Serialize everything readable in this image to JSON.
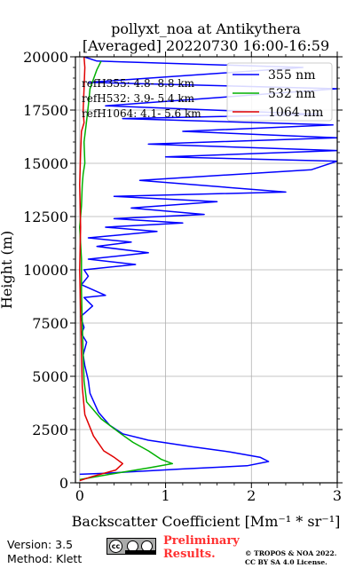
{
  "chart_data": {
    "type": "line",
    "title": "pollyxt_noa at Antikythera",
    "subtitle": "[Averaged] 20220730 16:00-16:59",
    "xlabel": "Backscatter Coefficient [Mm⁻¹ * sr⁻¹]",
    "ylabel": "Height (m)",
    "xlim": [
      -0.05,
      3
    ],
    "ylim": [
      0,
      20000
    ],
    "xticks": [
      "0",
      "1",
      "2",
      "3"
    ],
    "yticks": [
      "0",
      "2500",
      "5000",
      "7500",
      "10000",
      "12500",
      "15000",
      "17500",
      "20000"
    ],
    "grid": true,
    "legend_position": "top-right",
    "annotations": [
      "refH355:  4.8- 8.8 km",
      "refH532:  3.9- 5.4 km",
      "refH1064:  4.1- 5.6 km"
    ],
    "series": [
      {
        "name": "355 nm",
        "color": "#0000ff",
        "x": [
          0,
          0.3,
          1.2,
          1.95,
          2.2,
          2.1,
          1.75,
          1.3,
          0.8,
          0.5,
          0.35,
          0.22,
          0.12,
          0.1,
          0.06,
          0.04,
          0.08,
          0.02,
          0.05,
          0.01,
          0.15,
          0.05,
          0.3,
          0.02,
          0.1,
          0.05,
          0.65,
          0.1,
          0.8,
          0.2,
          0.6,
          0.1,
          0.9,
          0.3,
          1.2,
          0.4,
          1.45,
          0.6,
          1.6,
          0.4,
          2.4,
          0.7,
          2.7,
          3.0,
          1.0,
          3.0,
          0.8,
          3.0,
          1.2,
          2.95,
          0.5,
          2.8,
          0.3,
          3.0,
          0.1,
          2.6,
          0.2,
          0.05
        ],
        "y": [
          400,
          450,
          650,
          800,
          1000,
          1200,
          1450,
          1700,
          2000,
          2300,
          2700,
          3300,
          4200,
          4800,
          5500,
          6000,
          6600,
          7000,
          7300,
          7800,
          8300,
          8700,
          8800,
          9300,
          9700,
          10000,
          10250,
          10500,
          10800,
          11100,
          11300,
          11500,
          11800,
          12000,
          12200,
          12400,
          12600,
          12900,
          13200,
          13450,
          13650,
          14200,
          14700,
          15100,
          15300,
          15600,
          15900,
          16200,
          16500,
          16800,
          17100,
          17300,
          17700,
          18500,
          18800,
          19500,
          19800,
          20000
        ]
      },
      {
        "name": "532 nm",
        "color": "#00b000",
        "x": [
          0,
          0.35,
          0.8,
          1.08,
          0.95,
          0.8,
          0.62,
          0.48,
          0.25,
          0.08,
          0.05,
          0.04,
          0.03,
          0.02,
          0.02,
          0.0,
          0.02,
          0.03,
          0.04,
          0.06,
          0.05,
          0.08,
          0.1,
          0.12,
          0.2,
          0.25
        ],
        "y": [
          150,
          400,
          700,
          900,
          1100,
          1500,
          1900,
          2300,
          3000,
          3800,
          4800,
          6000,
          7500,
          9000,
          10500,
          12000,
          13000,
          14000,
          14500,
          15000,
          16000,
          17000,
          17700,
          18500,
          19400,
          19800
        ]
      },
      {
        "name": "1064 nm",
        "color": "#e00000",
        "x": [
          0,
          0.15,
          0.42,
          0.5,
          0.4,
          0.28,
          0.16,
          0.06,
          0.03,
          0.02,
          0.01,
          0.0,
          0.01,
          0.0,
          0.01,
          0.02,
          0.05,
          0.04,
          0.05,
          0.06,
          0.05
        ],
        "y": [
          100,
          300,
          600,
          900,
          1200,
          1500,
          2200,
          3200,
          4500,
          6000,
          8000,
          10000,
          12000,
          14000,
          15500,
          16500,
          16900,
          17500,
          18500,
          19500,
          20000
        ]
      }
    ]
  },
  "footer": {
    "version": "Version: 3.5",
    "method": "Method: Klett",
    "license_badge": "cc BY SA",
    "preliminary_line1": "Preliminary",
    "preliminary_line2": "Results.",
    "copyright_line1": "© TROPOS & NOA 2022.",
    "copyright_line2": "CC BY SA 4.0 License."
  }
}
